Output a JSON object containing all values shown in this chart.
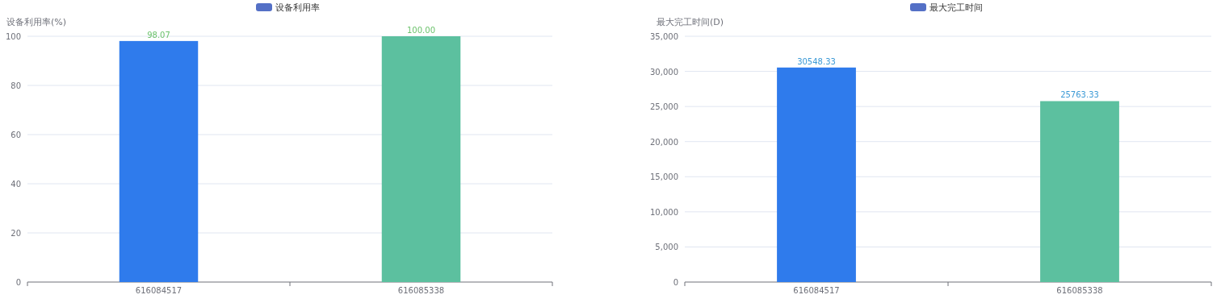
{
  "chart_data": [
    {
      "type": "bar",
      "ylabel": "设备利用率(%)",
      "categories": [
        "616084517",
        "616085338"
      ],
      "series": [
        {
          "name": "设备利用率",
          "color": "#5470c6",
          "colors": [
            "#2f7bec",
            "#5cc09f"
          ],
          "values": [
            98.07,
            100
          ],
          "value_labels": [
            "98.07",
            "100.00"
          ]
        }
      ],
      "ylim": [
        0,
        100
      ],
      "yticks": [
        0,
        20,
        40,
        60,
        80,
        100
      ],
      "grid": "y",
      "legend": "top"
    },
    {
      "type": "bar",
      "ylabel": "最大完工时间(D)",
      "categories": [
        "616084517",
        "616085338"
      ],
      "series": [
        {
          "name": "最大完工时间",
          "color": "#5470c6",
          "colors": [
            "#2f7bec",
            "#5cc09f"
          ],
          "values": [
            30548.33,
            25763.33
          ],
          "value_labels": [
            "30548.33",
            "25763.33"
          ]
        }
      ],
      "ylim": [
        0,
        35000
      ],
      "yticks": [
        0,
        {
          "value": 5000,
          "label": "5,000"
        },
        {
          "value": 10000,
          "label": "10,000"
        },
        {
          "value": 15000,
          "label": "15,000"
        },
        {
          "value": 20000,
          "label": "20,000"
        },
        {
          "value": 25000,
          "label": "25,000"
        },
        {
          "value": 30000,
          "label": "30,000"
        },
        {
          "value": 35000,
          "label": "35,000"
        }
      ],
      "grid": "y",
      "legend": "top"
    }
  ]
}
